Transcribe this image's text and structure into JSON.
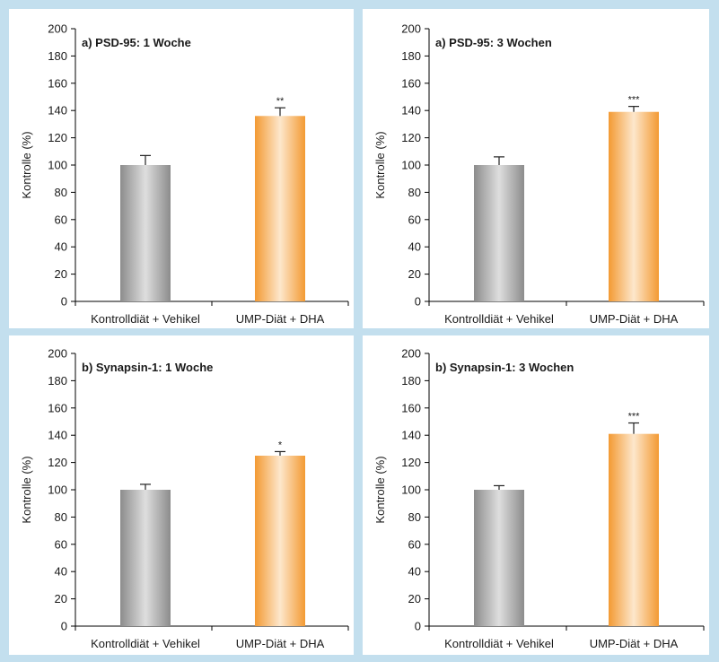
{
  "colors": {
    "background": "#c3dfee",
    "panel": "#ffffff",
    "control_bar": "#a6a6a6",
    "treatment_bar": "#f4a64a"
  },
  "chart_data": [
    {
      "type": "bar",
      "title": "a) PSD-95: 1 Woche",
      "ylabel": "Kontrolle (%)",
      "categories": [
        "Kontrolldiät + Vehikel",
        "UMP-Diät + DHA"
      ],
      "values": [
        100,
        136
      ],
      "errors": [
        7,
        6
      ],
      "significance": [
        "",
        "**"
      ],
      "ylim": [
        0,
        200
      ],
      "yticks": [
        0,
        20,
        40,
        60,
        80,
        100,
        120,
        140,
        160,
        180,
        200
      ],
      "grid": false
    },
    {
      "type": "bar",
      "title": "a) PSD-95: 3 Wochen",
      "ylabel": "Kontrolle (%)",
      "categories": [
        "Kontrolldiät + Vehikel",
        "UMP-Diät + DHA"
      ],
      "values": [
        100,
        139
      ],
      "errors": [
        6,
        4
      ],
      "significance": [
        "",
        "***"
      ],
      "ylim": [
        0,
        200
      ],
      "yticks": [
        0,
        20,
        40,
        60,
        80,
        100,
        120,
        140,
        160,
        180,
        200
      ],
      "grid": false
    },
    {
      "type": "bar",
      "title": "b) Synapsin-1: 1 Woche",
      "ylabel": "Kontrolle (%)",
      "categories": [
        "Kontrolldiät + Vehikel",
        "UMP-Diät + DHA"
      ],
      "values": [
        100,
        125
      ],
      "errors": [
        4,
        3
      ],
      "significance": [
        "",
        "*"
      ],
      "ylim": [
        0,
        200
      ],
      "yticks": [
        0,
        20,
        40,
        60,
        80,
        100,
        120,
        140,
        160,
        180,
        200
      ],
      "grid": false
    },
    {
      "type": "bar",
      "title": "b) Synapsin-1: 3 Wochen",
      "ylabel": "Kontrolle (%)",
      "categories": [
        "Kontrolldiät + Vehikel",
        "UMP-Diät + DHA"
      ],
      "values": [
        100,
        141
      ],
      "errors": [
        3,
        8
      ],
      "significance": [
        "",
        "***"
      ],
      "ylim": [
        0,
        200
      ],
      "yticks": [
        0,
        20,
        40,
        60,
        80,
        100,
        120,
        140,
        160,
        180,
        200
      ],
      "grid": false
    }
  ]
}
